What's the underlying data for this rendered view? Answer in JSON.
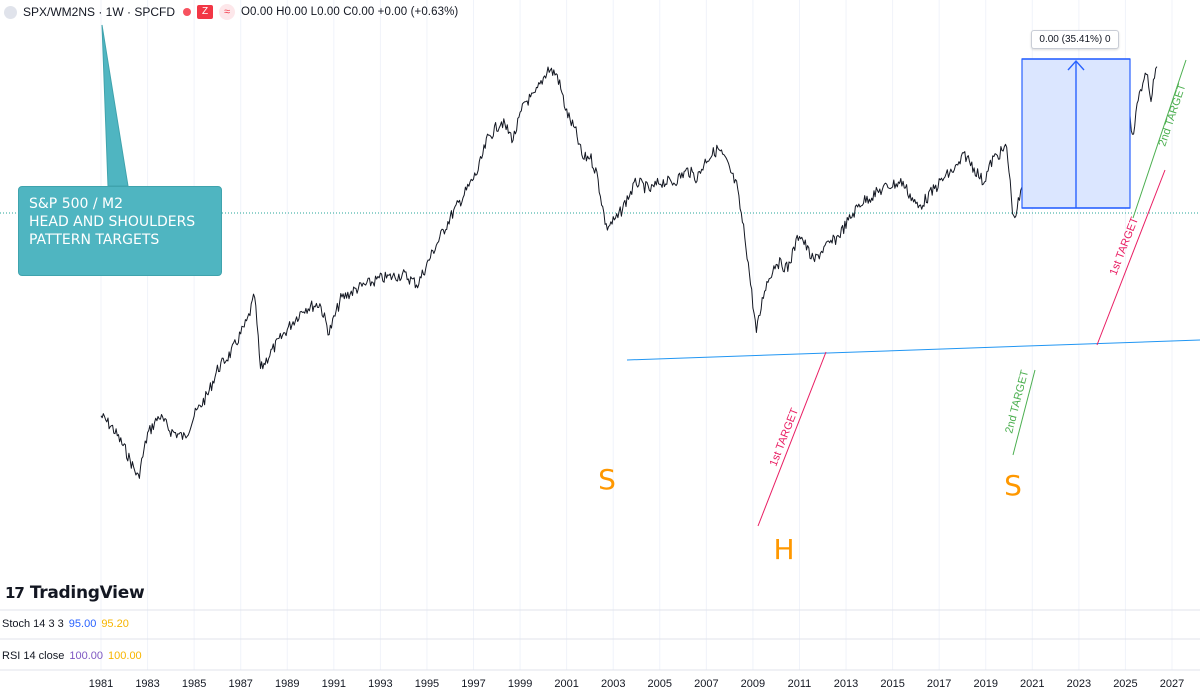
{
  "header": {
    "symbol": "SPX/WM2NS · 1W · SPCFD",
    "flag": "Z",
    "approx_symbol": "≈",
    "ohlc": "O0.00 H0.00 L0.00 C0.00 +0.00 (+0.63%)"
  },
  "callout": {
    "line1": "S&P 500 / M2",
    "line2": "",
    "line3": "HEAD AND SHOULDERS",
    "line4": "PATTERN TARGETS"
  },
  "measure": {
    "label": "0.00 (35.41%) 0",
    "fill": "#dbe6ff",
    "stroke": "#2962ff"
  },
  "annotations": {
    "s_left": "S",
    "h": "H",
    "s_right": "S",
    "first_target_a": "1st TARGET",
    "first_target_b": "1st TARGET",
    "second_target_a": "2nd TARGET",
    "second_target_b": "2nd TARGET",
    "letter_color": "#ff9800",
    "pink_line": "#e91e63",
    "green_line": "#4caf50",
    "neckline": "#2196f3"
  },
  "branding": {
    "logo_mark": "17",
    "logo_text": "TradingView"
  },
  "indicators": {
    "stoch": {
      "name": "Stoch 14 3 3",
      "k": "95.00",
      "d": "95.20"
    },
    "rsi": {
      "name": "RSI 14 close",
      "value": "100.00",
      "ma": "100.00"
    }
  },
  "chart_data": {
    "type": "line",
    "series": [
      {
        "points": [
          [
            1981.0,
            0.62
          ],
          [
            1981.5,
            0.58
          ],
          [
            1982.0,
            0.52
          ],
          [
            1982.6,
            0.44
          ],
          [
            1983.0,
            0.56
          ],
          [
            1983.5,
            0.62
          ],
          [
            1984.0,
            0.57
          ],
          [
            1984.6,
            0.55
          ],
          [
            1985.0,
            0.62
          ],
          [
            1985.6,
            0.7
          ],
          [
            1986.0,
            0.8
          ],
          [
            1986.6,
            0.88
          ],
          [
            1987.3,
            1.05
          ],
          [
            1987.6,
            1.2
          ],
          [
            1987.85,
            0.8
          ],
          [
            1988.3,
            0.88
          ],
          [
            1989.0,
            1.0
          ],
          [
            1989.7,
            1.12
          ],
          [
            1990.4,
            1.15
          ],
          [
            1990.8,
            0.98
          ],
          [
            1991.3,
            1.18
          ],
          [
            1992.0,
            1.25
          ],
          [
            1993.0,
            1.32
          ],
          [
            1994.0,
            1.35
          ],
          [
            1994.6,
            1.28
          ],
          [
            1995.3,
            1.55
          ],
          [
            1996.0,
            1.85
          ],
          [
            1996.6,
            2.1
          ],
          [
            1997.2,
            2.4
          ],
          [
            1997.6,
            2.85
          ],
          [
            1998.2,
            3.15
          ],
          [
            1998.7,
            2.85
          ],
          [
            1999.2,
            3.5
          ],
          [
            1999.6,
            3.6
          ],
          [
            2000.2,
            4.2
          ],
          [
            2000.6,
            4.05
          ],
          [
            2001.0,
            3.3
          ],
          [
            2001.4,
            2.95
          ],
          [
            2001.7,
            2.55
          ],
          [
            2002.0,
            2.6
          ],
          [
            2002.3,
            2.35
          ],
          [
            2002.7,
            1.75
          ],
          [
            2003.2,
            1.85
          ],
          [
            2003.6,
            2.05
          ],
          [
            2004.0,
            2.25
          ],
          [
            2004.6,
            2.15
          ],
          [
            2005.0,
            2.25
          ],
          [
            2005.6,
            2.25
          ],
          [
            2006.2,
            2.4
          ],
          [
            2006.6,
            2.3
          ],
          [
            2007.0,
            2.55
          ],
          [
            2007.5,
            2.7
          ],
          [
            2007.8,
            2.55
          ],
          [
            2008.3,
            2.2
          ],
          [
            2008.7,
            1.6
          ],
          [
            2009.15,
            0.98
          ],
          [
            2009.5,
            1.25
          ],
          [
            2010.0,
            1.45
          ],
          [
            2010.5,
            1.4
          ],
          [
            2011.0,
            1.7
          ],
          [
            2011.6,
            1.45
          ],
          [
            2012.0,
            1.55
          ],
          [
            2012.6,
            1.65
          ],
          [
            2013.0,
            1.78
          ],
          [
            2013.6,
            2.0
          ],
          [
            2014.2,
            2.1
          ],
          [
            2014.8,
            2.2
          ],
          [
            2015.4,
            2.25
          ],
          [
            2016.1,
            1.95
          ],
          [
            2016.6,
            2.1
          ],
          [
            2017.2,
            2.3
          ],
          [
            2017.8,
            2.45
          ],
          [
            2018.1,
            2.62
          ],
          [
            2018.9,
            2.25
          ],
          [
            2019.3,
            2.55
          ],
          [
            2019.9,
            2.72
          ],
          [
            2020.2,
            1.82
          ],
          [
            2020.6,
            2.2
          ],
          [
            2021.0,
            2.4
          ],
          [
            2021.6,
            2.7
          ],
          [
            2021.9,
            2.82
          ],
          [
            2022.4,
            2.35
          ],
          [
            2022.8,
            2.05
          ],
          [
            2023.1,
            2.3
          ],
          [
            2023.6,
            2.5
          ],
          [
            2024.1,
            2.95
          ],
          [
            2024.6,
            3.4
          ],
          [
            2025.1,
            3.85
          ],
          [
            2025.3,
            2.85
          ],
          [
            2025.6,
            3.7
          ],
          [
            2025.9,
            4.05
          ],
          [
            2026.1,
            3.6
          ],
          [
            2026.35,
            4.25
          ]
        ]
      }
    ],
    "x_ticks": [
      "1981",
      "1983",
      "1985",
      "1987",
      "1989",
      "1991",
      "1993",
      "1995",
      "1997",
      "1999",
      "2001",
      "2003",
      "2005",
      "2007",
      "2009",
      "2011",
      "2013",
      "2015",
      "2017",
      "2019",
      "2021",
      "2023",
      "2025",
      "2027"
    ],
    "xlim": [
      1981.0,
      2027.0
    ],
    "ylim": [
      0.28,
      5.2
    ],
    "grid": "vertical",
    "line_color": "#131722"
  }
}
